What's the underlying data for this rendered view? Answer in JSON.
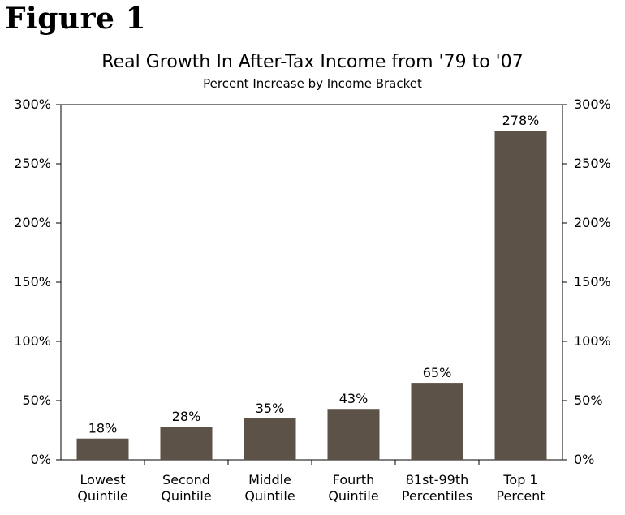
{
  "figure_label": "Figure 1",
  "chart_data": {
    "type": "bar",
    "title": "Real Growth In After-Tax Income from '79 to '07",
    "subtitle": "Percent Increase by Income Bracket",
    "categories": [
      [
        "Lowest",
        "Quintile"
      ],
      [
        "Second",
        "Quintile"
      ],
      [
        "Middle",
        "Quintile"
      ],
      [
        "Fourth",
        "Quintile"
      ],
      [
        "81st-99th",
        "Percentiles"
      ],
      [
        "Top 1",
        "Percent"
      ]
    ],
    "values": [
      18,
      28,
      35,
      43,
      65,
      278
    ],
    "data_labels": [
      "18%",
      "28%",
      "35%",
      "43%",
      "65%",
      "278%"
    ],
    "ylim": [
      0,
      300
    ],
    "yticks": [
      0,
      50,
      100,
      150,
      200,
      250,
      300
    ],
    "ytick_labels": [
      "0%",
      "50%",
      "100%",
      "150%",
      "200%",
      "250%",
      "300%"
    ],
    "secondary_y_axis": true,
    "grid": false,
    "bar_color": "#5c5247"
  }
}
